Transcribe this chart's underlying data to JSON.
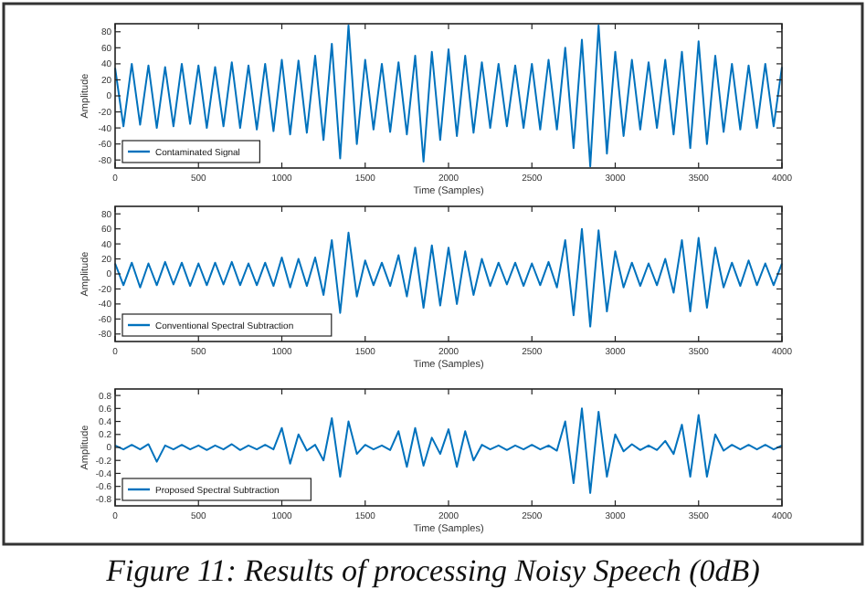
{
  "chart_data": [
    {
      "type": "line",
      "xlabel": "Time (Samples)",
      "ylabel": "Amplitude",
      "xlim": [
        0,
        4000
      ],
      "xticks": [
        0,
        500,
        1000,
        1500,
        2000,
        2500,
        3000,
        3500,
        4000
      ],
      "ylim": [
        -90,
        90
      ],
      "yticks": [
        -80,
        -60,
        -40,
        -20,
        0,
        20,
        40,
        60,
        80
      ],
      "legend": "bottom left",
      "grid": false,
      "x": [
        0,
        50,
        100,
        150,
        200,
        250,
        300,
        350,
        400,
        450,
        500,
        550,
        600,
        650,
        700,
        750,
        800,
        850,
        900,
        950,
        1000,
        1050,
        1100,
        1150,
        1200,
        1250,
        1300,
        1350,
        1400,
        1450,
        1500,
        1550,
        1600,
        1650,
        1700,
        1750,
        1800,
        1850,
        1900,
        1950,
        2000,
        2050,
        2100,
        2150,
        2200,
        2250,
        2300,
        2350,
        2400,
        2450,
        2500,
        2550,
        2600,
        2650,
        2700,
        2750,
        2800,
        2850,
        2900,
        2950,
        3000,
        3050,
        3100,
        3150,
        3200,
        3250,
        3300,
        3350,
        3400,
        3450,
        3500,
        3550,
        3600,
        3650,
        3700,
        3750,
        3800,
        3850,
        3900,
        3950,
        4000
      ],
      "series": [
        {
          "name": "Contaminated Signal",
          "color": "#0072bd",
          "values": [
            35,
            -38,
            40,
            -36,
            38,
            -40,
            36,
            -38,
            40,
            -35,
            38,
            -40,
            36,
            -38,
            42,
            -40,
            38,
            -42,
            40,
            -44,
            45,
            -48,
            44,
            -46,
            50,
            -55,
            65,
            -78,
            88,
            -60,
            45,
            -42,
            40,
            -45,
            42,
            -48,
            50,
            -82,
            55,
            -55,
            58,
            -50,
            50,
            -46,
            42,
            -40,
            40,
            -38,
            38,
            -40,
            40,
            -42,
            45,
            -42,
            60,
            -65,
            70,
            -88,
            88,
            -72,
            55,
            -50,
            45,
            -42,
            42,
            -40,
            45,
            -48,
            55,
            -65,
            68,
            -60,
            50,
            -45,
            40,
            -42,
            38,
            -40,
            40,
            -38,
            36
          ]
        }
      ]
    },
    {
      "type": "line",
      "xlabel": "Time (Samples)",
      "ylabel": "Amplitude",
      "xlim": [
        0,
        4000
      ],
      "xticks": [
        0,
        500,
        1000,
        1500,
        2000,
        2500,
        3000,
        3500,
        4000
      ],
      "ylim": [
        -90,
        90
      ],
      "yticks": [
        -80,
        -60,
        -40,
        -20,
        0,
        20,
        40,
        60,
        80
      ],
      "legend": "bottom left",
      "grid": false,
      "x": [
        0,
        50,
        100,
        150,
        200,
        250,
        300,
        350,
        400,
        450,
        500,
        550,
        600,
        650,
        700,
        750,
        800,
        850,
        900,
        950,
        1000,
        1050,
        1100,
        1150,
        1200,
        1250,
        1300,
        1350,
        1400,
        1450,
        1500,
        1550,
        1600,
        1650,
        1700,
        1750,
        1800,
        1850,
        1900,
        1950,
        2000,
        2050,
        2100,
        2150,
        2200,
        2250,
        2300,
        2350,
        2400,
        2450,
        2500,
        2550,
        2600,
        2650,
        2700,
        2750,
        2800,
        2850,
        2900,
        2950,
        3000,
        3050,
        3100,
        3150,
        3200,
        3250,
        3300,
        3350,
        3400,
        3450,
        3500,
        3550,
        3600,
        3650,
        3700,
        3750,
        3800,
        3850,
        3900,
        3950,
        4000
      ],
      "series": [
        {
          "name": "Conventional Spectral Subtraction",
          "color": "#0072bd",
          "values": [
            14,
            -15,
            15,
            -18,
            14,
            -15,
            16,
            -14,
            15,
            -16,
            14,
            -15,
            15,
            -14,
            16,
            -15,
            14,
            -15,
            15,
            -16,
            22,
            -18,
            20,
            -16,
            22,
            -28,
            45,
            -52,
            55,
            -30,
            18,
            -15,
            15,
            -16,
            25,
            -30,
            35,
            -45,
            38,
            -42,
            35,
            -40,
            30,
            -28,
            20,
            -16,
            15,
            -14,
            15,
            -16,
            14,
            -15,
            16,
            -18,
            45,
            -55,
            60,
            -70,
            58,
            -50,
            30,
            -18,
            15,
            -16,
            14,
            -15,
            20,
            -25,
            45,
            -50,
            48,
            -45,
            35,
            -18,
            15,
            -16,
            18,
            -15,
            14,
            -15,
            14
          ]
        }
      ]
    },
    {
      "type": "line",
      "xlabel": "Time (Samples)",
      "ylabel": "Amplitude",
      "xlim": [
        0,
        4000
      ],
      "xticks": [
        0,
        500,
        1000,
        1500,
        2000,
        2500,
        3000,
        3500,
        4000
      ],
      "ylim": [
        -0.9,
        0.9
      ],
      "yticks": [
        -0.8,
        -0.6,
        -0.4,
        -0.2,
        0,
        0.2,
        0.4,
        0.6,
        0.8
      ],
      "legend": "bottom left",
      "grid": false,
      "annotations": [
        "Figure 11: Results of processing Noisy Speech (0dB)"
      ],
      "x": [
        0,
        50,
        100,
        150,
        200,
        250,
        300,
        350,
        400,
        450,
        500,
        550,
        600,
        650,
        700,
        750,
        800,
        850,
        900,
        950,
        1000,
        1050,
        1100,
        1150,
        1200,
        1250,
        1300,
        1350,
        1400,
        1450,
        1500,
        1550,
        1600,
        1650,
        1700,
        1750,
        1800,
        1850,
        1900,
        1950,
        2000,
        2050,
        2100,
        2150,
        2200,
        2250,
        2300,
        2350,
        2400,
        2450,
        2500,
        2550,
        2600,
        2650,
        2700,
        2750,
        2800,
        2850,
        2900,
        2950,
        3000,
        3050,
        3100,
        3150,
        3200,
        3250,
        3300,
        3350,
        3400,
        3450,
        3500,
        3550,
        3600,
        3650,
        3700,
        3750,
        3800,
        3850,
        3900,
        3950,
        4000
      ],
      "series": [
        {
          "name": "Proposed Spectral Subtraction",
          "color": "#0072bd",
          "values": [
            0.03,
            -0.03,
            0.04,
            -0.03,
            0.05,
            -0.22,
            0.03,
            -0.03,
            0.04,
            -0.03,
            0.03,
            -0.04,
            0.03,
            -0.03,
            0.05,
            -0.04,
            0.03,
            -0.03,
            0.04,
            -0.03,
            0.3,
            -0.25,
            0.2,
            -0.05,
            0.04,
            -0.2,
            0.45,
            -0.45,
            0.4,
            -0.1,
            0.04,
            -0.03,
            0.03,
            -0.04,
            0.25,
            -0.3,
            0.3,
            -0.28,
            0.15,
            -0.1,
            0.28,
            -0.3,
            0.25,
            -0.2,
            0.04,
            -0.03,
            0.03,
            -0.04,
            0.03,
            -0.03,
            0.04,
            -0.03,
            0.03,
            -0.05,
            0.4,
            -0.55,
            0.6,
            -0.7,
            0.55,
            -0.45,
            0.2,
            -0.06,
            0.05,
            -0.04,
            0.03,
            -0.04,
            0.1,
            -0.1,
            0.35,
            -0.45,
            0.5,
            -0.45,
            0.2,
            -0.05,
            0.04,
            -0.03,
            0.04,
            -0.03,
            0.04,
            -0.03,
            0.03
          ]
        }
      ]
    }
  ]
}
